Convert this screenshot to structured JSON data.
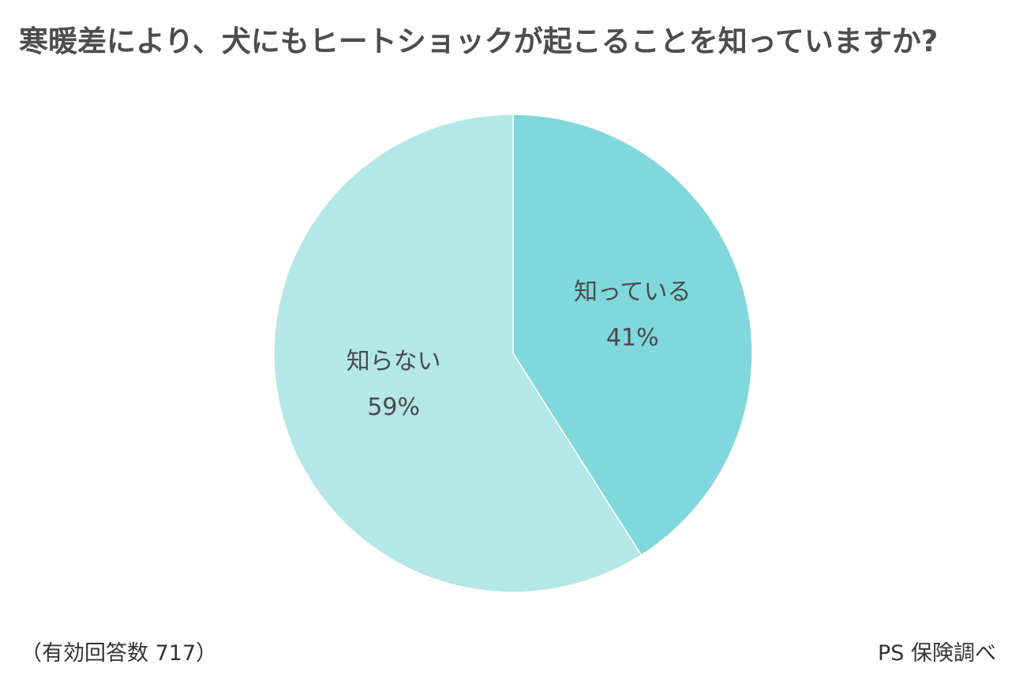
{
  "chart_data": {
    "type": "pie",
    "title": "寒暖差により、犬にもヒートショックが起こることを知っていますか?",
    "slices": [
      {
        "label": "知っている",
        "value": 41,
        "value_label": "41%",
        "color": "#80d8dc"
      },
      {
        "label": "知らない",
        "value": 59,
        "value_label": "59%",
        "color": "#b4e7e8"
      }
    ],
    "start_angle_deg": 0,
    "direction": "clockwise",
    "footnote": "（有効回答数 717）",
    "source": "PS 保険調べ"
  }
}
